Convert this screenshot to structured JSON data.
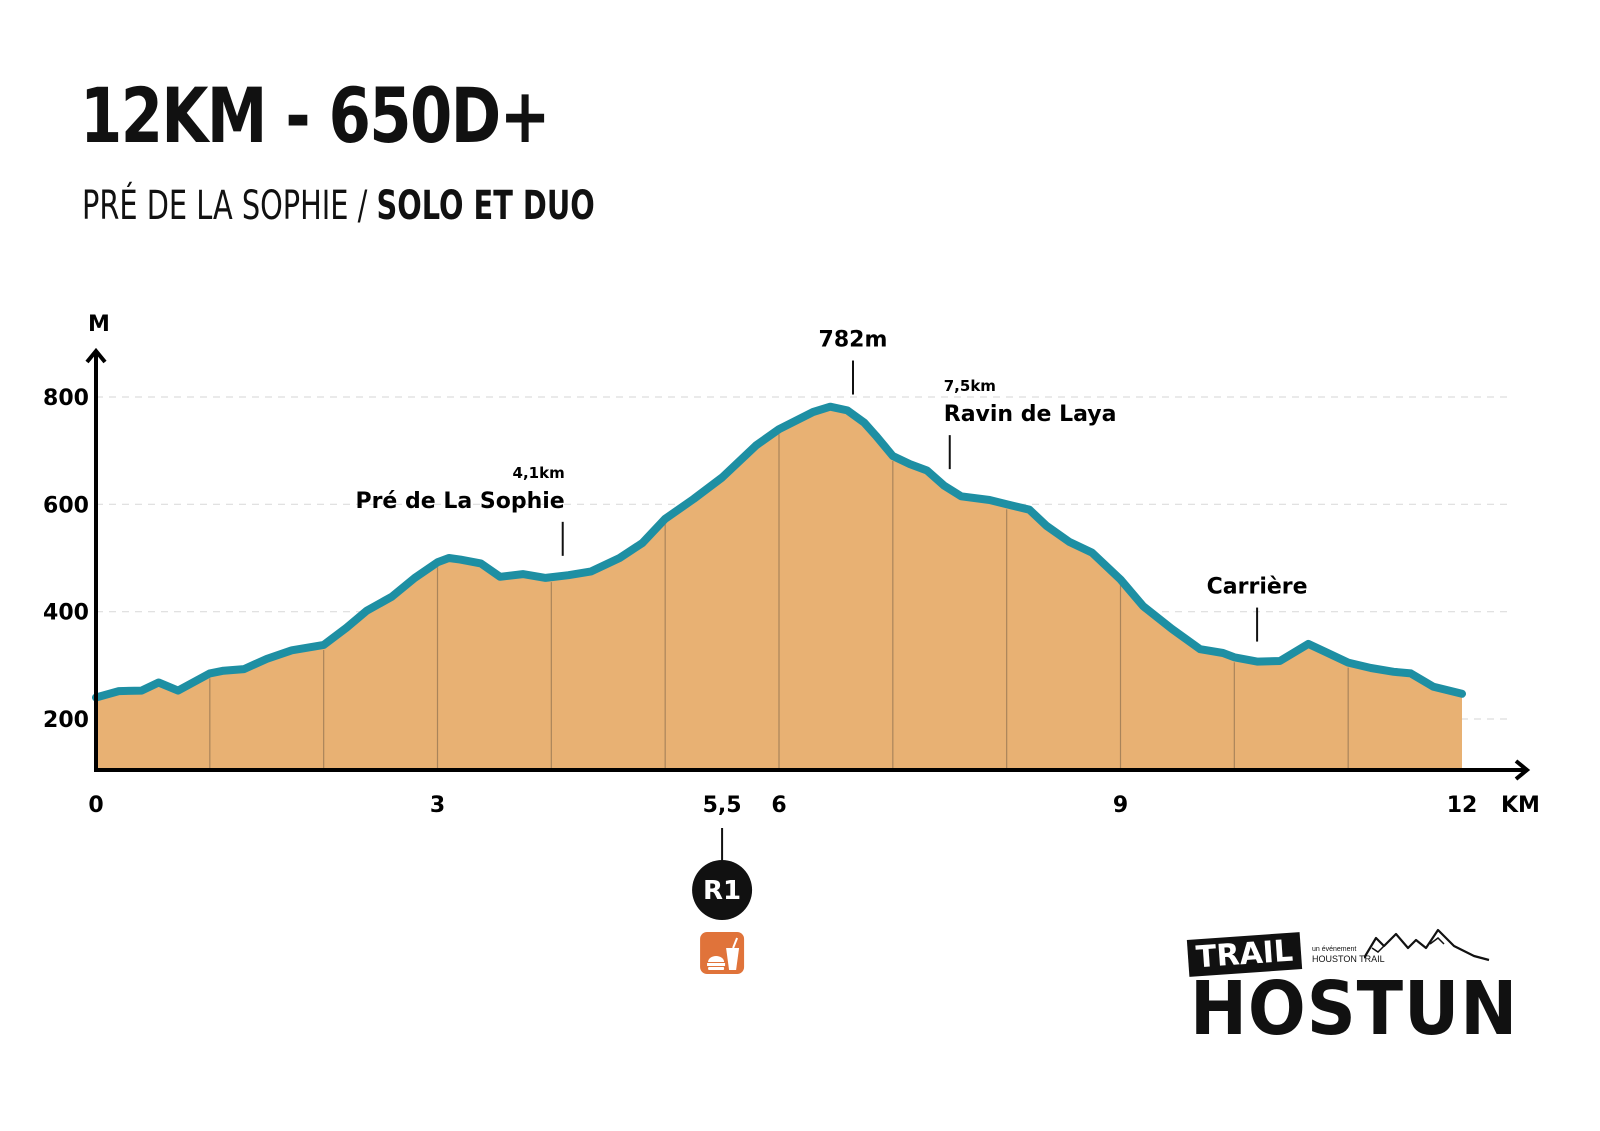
{
  "header": {
    "title": "12KM - 650D+",
    "subtitle_regular": "PRÉ DE LA SOPHIE /",
    "subtitle_bold": "SOLO ET DUO"
  },
  "chart_data": {
    "type": "area",
    "xlabel": "KM",
    "ylabel": "M",
    "xlim": [
      0,
      12
    ],
    "ylim": [
      120,
      860
    ],
    "x_ticks": [
      {
        "value": 0,
        "label": "0"
      },
      {
        "value": 3,
        "label": "3"
      },
      {
        "value": 5.5,
        "label": "5,5"
      },
      {
        "value": 6,
        "label": "6"
      },
      {
        "value": 9,
        "label": "9"
      },
      {
        "value": 12,
        "label": "12"
      }
    ],
    "y_ticks": [
      {
        "value": 200,
        "label": "200"
      },
      {
        "value": 400,
        "label": "400"
      },
      {
        "value": 600,
        "label": "600"
      },
      {
        "value": 800,
        "label": "800"
      }
    ],
    "grid": "horizontal dashed",
    "colors": {
      "fill": "#E8B173",
      "line": "#1E8FA3",
      "segment_line": "#9A7A55",
      "grid": "#DDDDDD",
      "aid_icon": "#E0733A"
    },
    "series": [
      {
        "x": [
          0,
          0.2,
          0.4,
          0.55,
          0.72,
          1.0,
          1.12,
          1.3,
          1.5,
          1.72,
          2.0,
          2.2,
          2.38,
          2.6,
          2.8,
          3.0,
          3.1,
          3.2,
          3.38,
          3.55,
          3.75,
          3.95,
          4.15,
          4.35,
          4.6,
          4.8,
          5.0,
          5.25,
          5.5,
          5.8,
          6.0,
          6.3,
          6.45,
          6.6,
          6.75,
          6.85,
          7.0,
          7.15,
          7.3,
          7.45,
          7.6,
          7.85,
          8.0,
          8.2,
          8.35,
          8.55,
          8.75,
          9.0,
          9.2,
          9.45,
          9.7,
          9.9,
          10.0,
          10.2,
          10.4,
          10.65,
          10.8,
          11.0,
          11.2,
          11.4,
          11.55,
          11.75,
          12.0
        ],
        "y": [
          240,
          252,
          253,
          268,
          253,
          285,
          290,
          293,
          312,
          328,
          338,
          370,
          402,
          428,
          463,
          492,
          500,
          497,
          490,
          465,
          470,
          463,
          468,
          475,
          500,
          528,
          573,
          610,
          650,
          710,
          740,
          772,
          782,
          775,
          752,
          728,
          690,
          675,
          663,
          635,
          615,
          608,
          600,
          590,
          560,
          530,
          510,
          460,
          410,
          368,
          330,
          323,
          315,
          307,
          308,
          340,
          325,
          305,
          295,
          288,
          285,
          260,
          247
        ]
      }
    ],
    "annotations": [
      {
        "x": 4.1,
        "distance": "4,1km",
        "label": "Pré de La Sophie"
      },
      {
        "x": 6.65,
        "label": "782m"
      },
      {
        "x": 7.5,
        "distance": "7,5km",
        "label": "Ravin de Laya"
      },
      {
        "x": 10.2,
        "label": "Carrière"
      }
    ],
    "aid_station": {
      "x": 5.5,
      "label": "R1",
      "icon": "food-drink-icon"
    }
  },
  "logo": {
    "trail": "TRAIL",
    "name": "HOSTUN",
    "event_small": "un événement",
    "event_name": "HOUSTON TRAIL"
  }
}
